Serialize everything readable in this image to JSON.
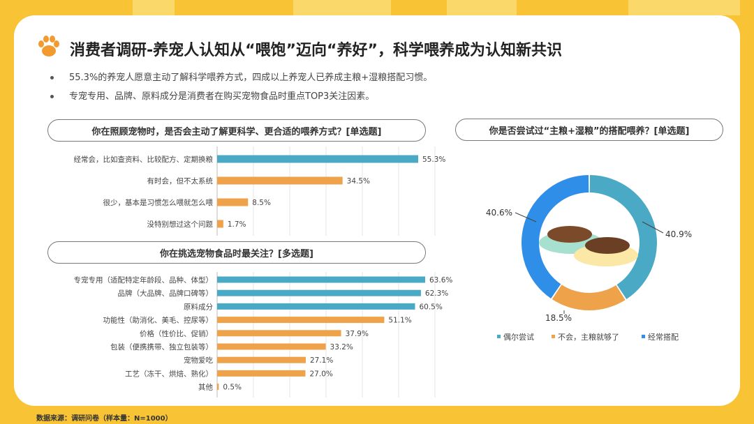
{
  "page": {
    "title": "消费者调研-养宠人认知从“喂饱”迈向“养好”，科学喂养成为认知新共识",
    "bullets": [
      "55.3%的养宠人愿意主动了解科学喂养方式，四成以上养宠人已养成主粮+湿粮搭配习惯。",
      "专宠专用、品牌、原料成分是消费者在购买宠物食品时重点TOP3关注因素。"
    ],
    "source": "数据来源：调研问卷（样本量：N=1000）"
  },
  "colors": {
    "teal": "#4aa9c5",
    "orange": "#eea24a",
    "blue": "#2f8ee8",
    "brand_yellow": "#f8c436"
  },
  "chart_data": [
    {
      "type": "bar",
      "title": "你在照顾宠物时，是否会主动了解更科学、更合适的喂养方式？[单选题]",
      "categories": [
        "经常会，比如查资料、比较配方、定期换粮",
        "有时会，但不太系统",
        "很少，基本是习惯怎么喂就怎么喂",
        "没特别想过这个问题"
      ],
      "values": [
        55.3,
        34.5,
        8.5,
        1.7
      ],
      "labels": [
        "55.3%",
        "34.5%",
        "8.5%",
        "1.7%"
      ],
      "highlight_count": 1
    },
    {
      "type": "bar",
      "title": "你在挑选宠物食品时最关注？[多选题]",
      "categories": [
        "专宠专用（适配特定年龄段、品种、体型）",
        "品牌（大品牌、品牌口碑等）",
        "原料成分",
        "功能性（助消化、美毛、控尿等）",
        "价格（性价比、促销）",
        "包装（便携携带、独立包装等）",
        "宠物爱吃",
        "工艺（冻干、烘焙、熟化）",
        "其他"
      ],
      "values": [
        63.6,
        62.3,
        60.5,
        51.1,
        37.9,
        33.2,
        27.1,
        27.0,
        0.5
      ],
      "labels": [
        "63.6%",
        "62.3%",
        "60.5%",
        "51.1%",
        "37.9%",
        "33.2%",
        "27.1%",
        "27.0%",
        "0.5%"
      ],
      "highlight_count": 3
    },
    {
      "type": "pie",
      "title": "你是否尝试过“主粮+湿粮”的搭配喂养？[单选题]",
      "categories": [
        "偶尔尝试",
        "不会，主粮就够了",
        "经常搭配"
      ],
      "values": [
        40.9,
        18.5,
        40.6
      ],
      "labels": [
        "40.9%",
        "18.5%",
        "40.6%"
      ]
    }
  ]
}
